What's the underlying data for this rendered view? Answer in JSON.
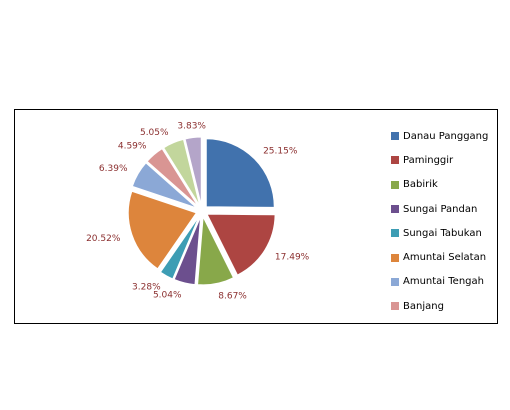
{
  "chart_data": {
    "type": "pie",
    "slices": [
      {
        "name": "Danau Panggang",
        "value": 25.15,
        "label": "25.15%",
        "color": "#4172ad"
      },
      {
        "name": "Paminggir",
        "value": 17.49,
        "label": "17.49%",
        "color": "#ad4542"
      },
      {
        "name": "Babirik",
        "value": 8.67,
        "label": "8.67%",
        "color": "#88a84a"
      },
      {
        "name": "Sungai Pandan",
        "value": 5.04,
        "label": "5.04%",
        "color": "#6c4f8e"
      },
      {
        "name": "Sungai Tabukan",
        "value": 3.28,
        "label": "3.28%",
        "color": "#3d9db4"
      },
      {
        "name": "Amuntai Selatan",
        "value": 20.52,
        "label": "20.52%",
        "color": "#dd853c"
      },
      {
        "name": "Amuntai Tengah",
        "value": 6.39,
        "label": "6.39%",
        "color": "#8ba8d6"
      },
      {
        "name": "Banjang",
        "value": 4.59,
        "label": "4.59%",
        "color": "#d99593"
      },
      {
        "name": "",
        "value": 5.05,
        "label": "5.05%",
        "color": "#c2d69c"
      },
      {
        "name": "",
        "value": 3.83,
        "label": "3.83%",
        "color": "#b4a5c9"
      }
    ],
    "legend": {
      "placement": "right",
      "entries": [
        "Danau Panggang",
        "Paminggir",
        "Babirik",
        "Sungai Pandan",
        "Sungai Tabukan",
        "Amuntai Selatan",
        "Amuntai Tengah",
        "Banjang"
      ]
    },
    "exploded": true,
    "label_color": "#8b2f2f"
  }
}
